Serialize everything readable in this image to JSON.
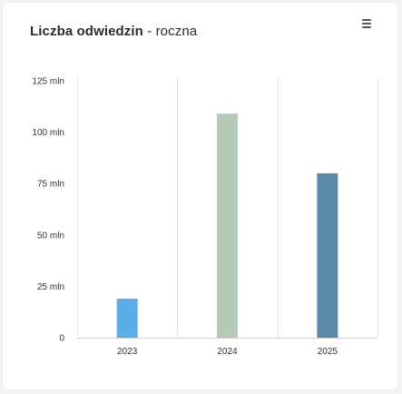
{
  "header": {
    "title_main": "Liczba odwiedzin",
    "title_suffix": " - roczna",
    "menu_icon": "hamburger-menu-icon"
  },
  "colors": {
    "grid": "#e6e6e6",
    "axis": "#cfcfcf",
    "bar_2023": "#5aaeea",
    "bar_2024": "#b3cbb6",
    "bar_2025": "#5b8aa8"
  },
  "chart_data": {
    "type": "bar",
    "title": "Liczba odwiedzin - roczna",
    "categories": [
      "2023",
      "2024",
      "2025"
    ],
    "values": [
      19000000,
      109000000,
      80000000
    ],
    "ylim": [
      0,
      125000000
    ],
    "yticks": [
      0,
      25000000,
      50000000,
      75000000,
      100000000,
      125000000
    ],
    "ytick_labels": [
      "0",
      "25 mln",
      "50 mln",
      "75 mln",
      "100 mln",
      "125 mln"
    ],
    "grid": "vertical lines between categories",
    "legend": "none"
  }
}
